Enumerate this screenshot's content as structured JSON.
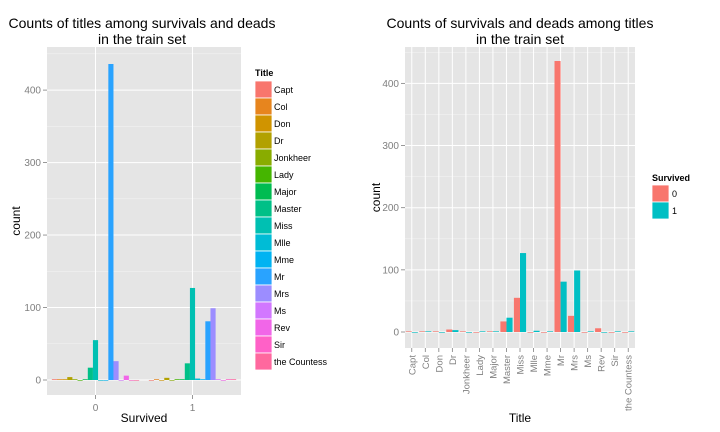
{
  "chart_data": [
    {
      "type": "bar",
      "title_lines": [
        "Counts of titles among survivals and deads",
        "in the train set"
      ],
      "xlabel": "Survived",
      "ylabel": "count",
      "categories": [
        "0",
        "1"
      ],
      "y_ticks": [
        0,
        100,
        200,
        300,
        400
      ],
      "ylim": [
        0,
        440
      ],
      "grid": true,
      "legend_title": "Title",
      "legend_position": "right",
      "series": [
        {
          "name": "Capt",
          "color": "#F8766D",
          "values": [
            1,
            0
          ]
        },
        {
          "name": "Col",
          "color": "#E7851E",
          "values": [
            1,
            1
          ]
        },
        {
          "name": "Don",
          "color": "#D09400",
          "values": [
            1,
            0
          ]
        },
        {
          "name": "Dr",
          "color": "#B2A100",
          "values": [
            4,
            3
          ]
        },
        {
          "name": "Jonkheer",
          "color": "#89AC00",
          "values": [
            1,
            0
          ]
        },
        {
          "name": "Lady",
          "color": "#45B500",
          "values": [
            0,
            1
          ]
        },
        {
          "name": "Major",
          "color": "#00BC51",
          "values": [
            1,
            1
          ]
        },
        {
          "name": "Master",
          "color": "#00C087",
          "values": [
            17,
            23
          ]
        },
        {
          "name": "Miss",
          "color": "#00C0B2",
          "values": [
            55,
            127
          ]
        },
        {
          "name": "Mlle",
          "color": "#00BCD6",
          "values": [
            0,
            2
          ]
        },
        {
          "name": "Mme",
          "color": "#00B3F2",
          "values": [
            0,
            1
          ]
        },
        {
          "name": "Mr",
          "color": "#29A3FF",
          "values": [
            436,
            81
          ]
        },
        {
          "name": "Mrs",
          "color": "#9C8DFF",
          "values": [
            26,
            99
          ]
        },
        {
          "name": "Ms",
          "color": "#D277FF",
          "values": [
            0,
            1
          ]
        },
        {
          "name": "Rev",
          "color": "#F166E8",
          "values": [
            6,
            0
          ]
        },
        {
          "name": "Sir",
          "color": "#FF61C7",
          "values": [
            0,
            1
          ]
        },
        {
          "name": "the Countess",
          "color": "#FF689E",
          "values": [
            0,
            1
          ]
        }
      ]
    },
    {
      "type": "bar",
      "title_lines": [
        "Counts of survivals and deads among titles",
        "in the train set"
      ],
      "xlabel": "Title",
      "ylabel": "count",
      "categories": [
        "Capt",
        "Col",
        "Don",
        "Dr",
        "Jonkheer",
        "Lady",
        "Major",
        "Master",
        "Miss",
        "Mlle",
        "Mme",
        "Mr",
        "Mrs",
        "Ms",
        "Rev",
        "Sir",
        "the Countess"
      ],
      "y_ticks": [
        0,
        100,
        200,
        300,
        400
      ],
      "ylim": [
        0,
        440
      ],
      "grid": true,
      "legend_title": "Survived",
      "legend_position": "right",
      "series": [
        {
          "name": "0",
          "color": "#F8766D",
          "values": [
            1,
            1,
            1,
            4,
            1,
            0,
            1,
            17,
            55,
            0,
            0,
            436,
            26,
            0,
            6,
            0,
            0
          ]
        },
        {
          "name": "1",
          "color": "#00BFC4",
          "values": [
            0,
            1,
            0,
            3,
            0,
            1,
            1,
            23,
            127,
            2,
            1,
            81,
            99,
            1,
            0,
            1,
            1
          ]
        }
      ]
    }
  ]
}
